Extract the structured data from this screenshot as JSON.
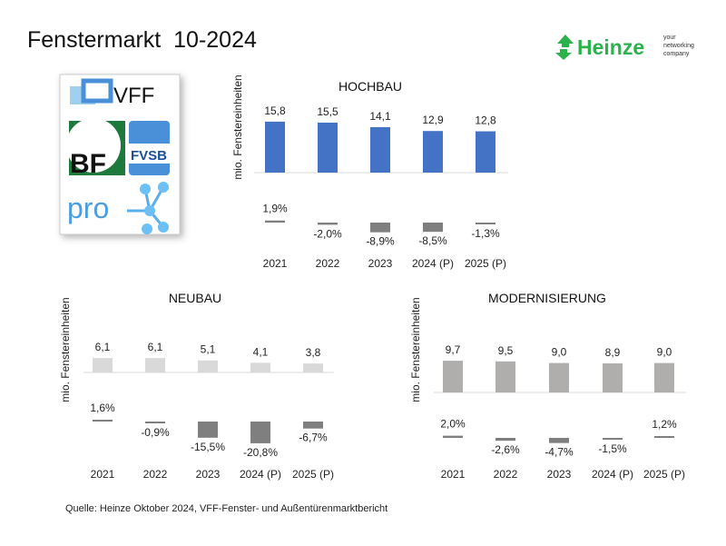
{
  "title": "Fenstermarkt  10-2024",
  "source": "Quelle: Heinze Oktober 2024, VFF-Fenster- und Außentürenmarktbericht",
  "logos": {
    "heinze": {
      "name": "Heinze",
      "tagline": "your networking company",
      "color": "#2bb24c"
    },
    "associations": [
      "VFF",
      "BF",
      "FVSB",
      "pro-K"
    ]
  },
  "chart_data": [
    {
      "type": "bar",
      "title": "HOCHBAU",
      "ylabel": "mio. Fenstereinheiten",
      "categories": [
        "2021",
        "2022",
        "2023",
        "2024 (P)",
        "2025 (P)"
      ],
      "values": [
        15.8,
        15.5,
        14.1,
        12.9,
        12.8
      ],
      "value_labels": [
        "15,8",
        "15,5",
        "14,1",
        "12,9",
        "12,8"
      ],
      "change_pct": [
        1.9,
        -2.0,
        -8.9,
        -8.5,
        -1.3
      ],
      "change_labels": [
        "1,9%",
        "-2,0%",
        "-8,9%",
        "-8,5%",
        "-1,3%"
      ],
      "bar_color": "#4472c4",
      "change_color": "#7f7f7f"
    },
    {
      "type": "bar",
      "title": "NEUBAU",
      "ylabel": "mio. Fenstereinheiten",
      "categories": [
        "2021",
        "2022",
        "2023",
        "2024 (P)",
        "2025 (P)"
      ],
      "values": [
        6.1,
        6.1,
        5.1,
        4.1,
        3.8
      ],
      "value_labels": [
        "6,1",
        "6,1",
        "5,1",
        "4,1",
        "3,8"
      ],
      "change_pct": [
        1.6,
        -0.9,
        -15.5,
        -20.8,
        -6.7
      ],
      "change_labels": [
        "1,6%",
        "-0,9%",
        "-15,5%",
        "-20,8%",
        "-6,7%"
      ],
      "bar_color": "#d9d9d9",
      "change_color": "#7f7f7f"
    },
    {
      "type": "bar",
      "title": "MODERNISIERUNG",
      "ylabel": "mio. Fenstereinheiten",
      "categories": [
        "2021",
        "2022",
        "2023",
        "2024 (P)",
        "2025 (P)"
      ],
      "values": [
        9.7,
        9.5,
        9.0,
        8.9,
        9.0
      ],
      "value_labels": [
        "9,7",
        "9,5",
        "9,0",
        "8,9",
        "9,0"
      ],
      "change_pct": [
        2.0,
        -2.6,
        -4.7,
        -1.5,
        1.2
      ],
      "change_labels": [
        "2,0%",
        "-2,6%",
        "-4,7%",
        "-1,5%",
        "1,2%"
      ],
      "bar_color": "#b0adad",
      "change_color": "#7f7f7f"
    }
  ]
}
